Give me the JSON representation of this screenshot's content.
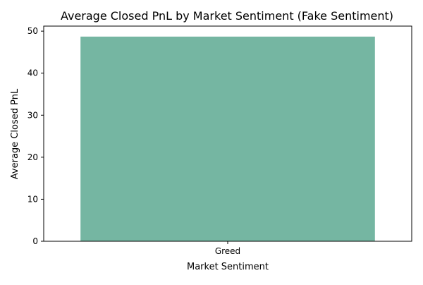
{
  "chart_data": {
    "type": "bar",
    "title": "Average Closed PnL by Market Sentiment (Fake Sentiment)",
    "xlabel": "Market Sentiment",
    "ylabel": "Average Closed PnL",
    "categories": [
      "Greed"
    ],
    "values": [
      48.7
    ],
    "ylim": [
      0,
      51.2
    ],
    "yticks": [
      0,
      10,
      20,
      30,
      40,
      50
    ],
    "bar_color": "#75b6a2",
    "grid": false,
    "legend": "none"
  }
}
